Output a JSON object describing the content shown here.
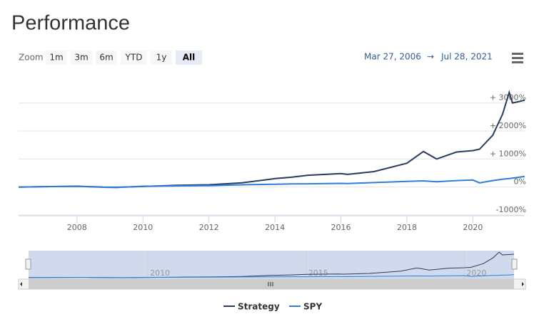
{
  "title": "Performance",
  "zoom_label": "Zoom",
  "zoom_buttons": [
    "1m",
    "3m",
    "6m",
    "YTD",
    "1y",
    "All"
  ],
  "selected_button": "All",
  "range_from": "Mar 27, 2006",
  "range_separator": "→",
  "range_to": "Jul 28, 2021",
  "chart_data": {
    "type": "line",
    "x": [
      2006.23,
      2007,
      2008,
      2008.8,
      2009.2,
      2010,
      2011,
      2012,
      2013,
      2014,
      2014.5,
      2015,
      2016,
      2016.2,
      2017,
      2018,
      2018.5,
      2018.9,
      2019.5,
      2020,
      2020.2,
      2020.6,
      2020.9,
      2021.1,
      2021.2,
      2021.4,
      2021.57
    ],
    "series": [
      {
        "name": "Strategy",
        "color": "#293b5f",
        "values": [
          0,
          15,
          30,
          -5,
          -10,
          20,
          60,
          80,
          150,
          300,
          350,
          420,
          480,
          450,
          550,
          850,
          1270,
          1000,
          1250,
          1300,
          1350,
          1850,
          2600,
          3380,
          3000,
          3050,
          3100
        ]
      },
      {
        "name": "SPY",
        "color": "#2f7ed8",
        "values": [
          0,
          15,
          25,
          -10,
          -20,
          30,
          40,
          50,
          80,
          100,
          110,
          115,
          130,
          125,
          160,
          200,
          220,
          190,
          230,
          250,
          150,
          230,
          280,
          300,
          320,
          350,
          380
        ]
      }
    ],
    "xlim": [
      2006.23,
      2021.57
    ],
    "xticks": [
      2008,
      2010,
      2012,
      2014,
      2016,
      2018,
      2020
    ],
    "ylim": [
      -1000,
      3600
    ],
    "yticks": [
      {
        "value": -1000,
        "label": "-1000%"
      },
      {
        "value": 0,
        "label": "0%"
      },
      {
        "value": 1000,
        "label": "+ 1000%"
      },
      {
        "value": 2000,
        "label": "+ 2000%"
      },
      {
        "value": 3000,
        "label": "+ 3000%"
      }
    ],
    "grid": true,
    "navigator_xticks": [
      2010,
      2015,
      2020
    ]
  }
}
